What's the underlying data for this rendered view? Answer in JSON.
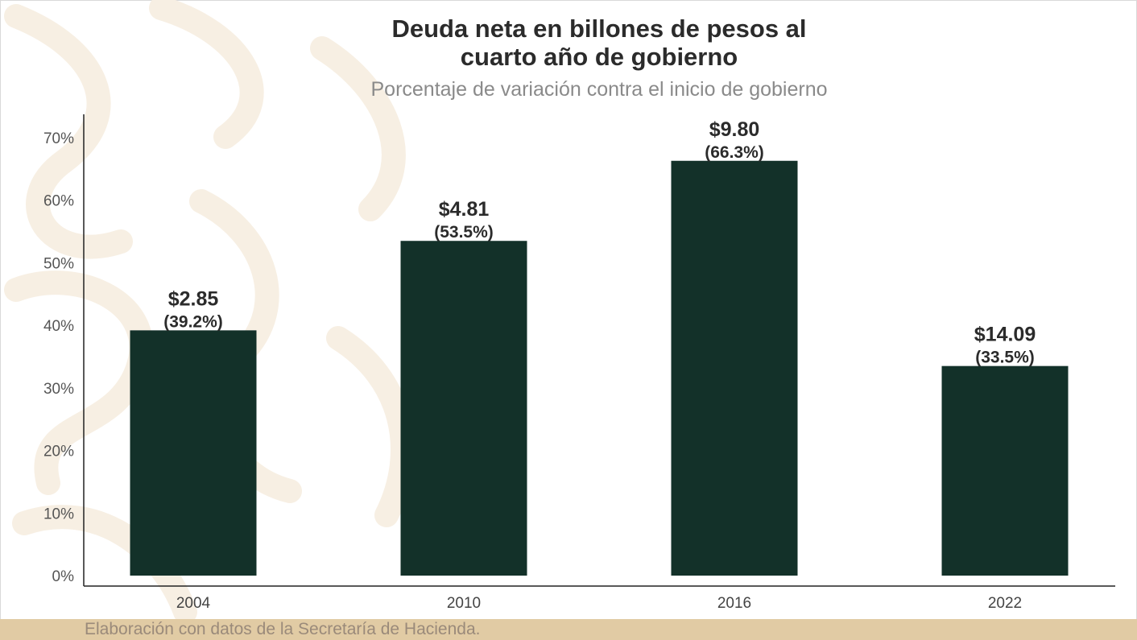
{
  "chart_data": {
    "type": "bar",
    "title": "Deuda neta en billones de pesos al cuarto año de gobierno",
    "subtitle": "Porcentaje de variación contra el inicio de gobierno",
    "categories": [
      "2004",
      "2010",
      "2016",
      "2022"
    ],
    "values": [
      39.2,
      53.5,
      66.3,
      33.5
    ],
    "amount_labels": [
      "$2.85",
      "$4.81",
      "$9.80",
      "$14.09"
    ],
    "percent_labels": [
      "(39.2%)",
      "(53.5%)",
      "(66.3%)",
      "(33.5%)"
    ],
    "y_ticks": [
      "0%",
      "10%",
      "20%",
      "30%",
      "40%",
      "50%",
      "60%",
      "70%"
    ],
    "ylim": [
      0,
      70
    ],
    "bar_color": "#133129",
    "grid": false
  },
  "title_lines": [
    "Deuda neta en billones de pesos al",
    "cuarto año de gobierno"
  ],
  "footer": "Elaboración con datos de la Secretaría de Hacienda.",
  "colors": {
    "footer_band": "#e1cba4",
    "watermark": "#f7efe3"
  }
}
